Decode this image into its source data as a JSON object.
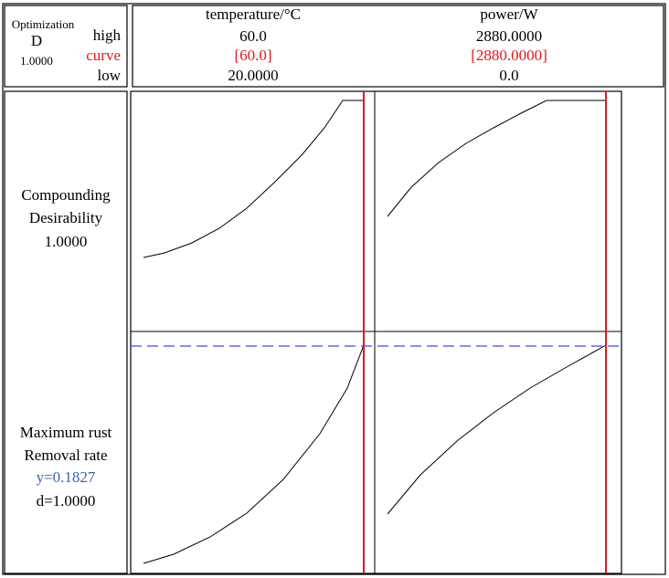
{
  "header": {
    "optimization": "Optimization",
    "d_label": "D",
    "d_value": "1.0000",
    "high": "high",
    "curve": "curve",
    "low": "low"
  },
  "factors": [
    {
      "name": "temperature/°C",
      "high": "60.0",
      "current": "[60.0]",
      "low": "20.0000"
    },
    {
      "name": "power/W",
      "high": "2880.0000",
      "current": "[2880.0000]",
      "low": "0.0"
    }
  ],
  "responses": [
    {
      "lines": [
        "Compounding",
        "Desirability",
        "1.0000"
      ]
    },
    {
      "lines": [
        "Maximum rust",
        "Removal rate"
      ],
      "y": "y=0.1827",
      "d": "d=1.0000"
    }
  ]
}
